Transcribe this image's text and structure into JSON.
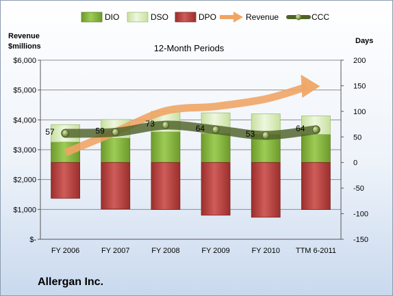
{
  "chart_data": {
    "type": "bar",
    "title": "12-Month Periods",
    "ylabel_left": "Revenue\n$millions",
    "ylabel_right": "Days",
    "categories": [
      "FY 2006",
      "FY 2007",
      "FY 2008",
      "FY 2009",
      "FY 2010",
      "TTM 6-2011"
    ],
    "left_axis": {
      "ylim": [
        0,
        6000
      ],
      "ticks": [
        0,
        1000,
        2000,
        3000,
        4000,
        5000,
        6000
      ],
      "tick_labels": [
        "$-",
        "$1,000",
        "$2,000",
        "$3,000",
        "$4,000",
        "$5,000",
        "$6,000"
      ]
    },
    "right_axis": {
      "ylim": [
        -150,
        200
      ],
      "ticks": [
        -150,
        -100,
        -50,
        0,
        50,
        100,
        150,
        200
      ]
    },
    "grid": true,
    "legend_position": "top",
    "series": [
      {
        "name": "DIO",
        "axis": "right",
        "kind": "stacked-bar",
        "color": "#8dc04a",
        "values": [
          40,
          48,
          60,
          57,
          55,
          55
        ]
      },
      {
        "name": "DSO",
        "axis": "right",
        "kind": "stacked-bar",
        "color": "#dcecc0",
        "values": [
          34,
          36,
          40,
          40,
          40,
          36
        ]
      },
      {
        "name": "DPO",
        "axis": "right",
        "kind": "negative-bar",
        "color": "#c0504d",
        "values": [
          -70,
          -91,
          -92,
          -103,
          -107,
          -92
        ]
      },
      {
        "name": "Revenue",
        "axis": "left",
        "kind": "line-arrow",
        "color": "#f0a565",
        "values": [
          2900,
          3600,
          4300,
          4450,
          4700,
          5150
        ]
      },
      {
        "name": "CCC",
        "axis": "right",
        "kind": "line",
        "color": "#4f6228",
        "values": [
          57,
          59,
          73,
          64,
          53,
          64
        ],
        "data_labels": [
          "57",
          "59",
          "73",
          "64",
          "53",
          "64"
        ]
      }
    ]
  },
  "company": "Allergan Inc."
}
